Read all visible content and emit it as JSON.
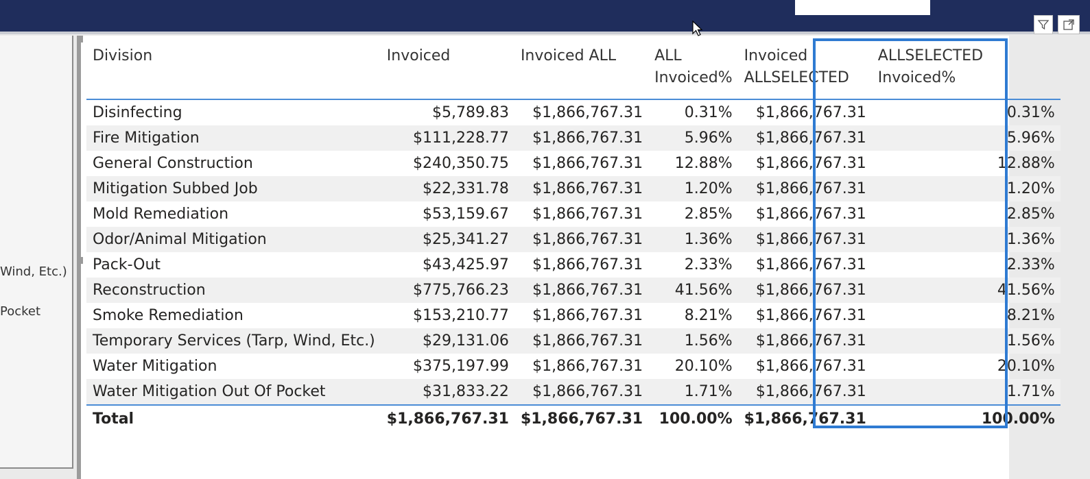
{
  "left_panel": {
    "fragments": [
      {
        "text": "Wind, Etc.)"
      },
      {
        "text": "Pocket"
      }
    ]
  },
  "table": {
    "headers": [
      "Division",
      "Invoiced",
      "Invoiced ALL",
      "ALL Invoiced%",
      "Invoiced ALLSELECTED",
      "ALLSELECTED Invoiced%"
    ],
    "rows": [
      [
        "Disinfecting",
        "$5,789.83",
        "$1,866,767.31",
        "0.31%",
        "$1,866,767.31",
        "0.31%"
      ],
      [
        "Fire Mitigation",
        "$111,228.77",
        "$1,866,767.31",
        "5.96%",
        "$1,866,767.31",
        "5.96%"
      ],
      [
        "General Construction",
        "$240,350.75",
        "$1,866,767.31",
        "12.88%",
        "$1,866,767.31",
        "12.88%"
      ],
      [
        "Mitigation Subbed Job",
        "$22,331.78",
        "$1,866,767.31",
        "1.20%",
        "$1,866,767.31",
        "1.20%"
      ],
      [
        "Mold Remediation",
        "$53,159.67",
        "$1,866,767.31",
        "2.85%",
        "$1,866,767.31",
        "2.85%"
      ],
      [
        "Odor/Animal Mitigation",
        "$25,341.27",
        "$1,866,767.31",
        "1.36%",
        "$1,866,767.31",
        "1.36%"
      ],
      [
        "Pack-Out",
        "$43,425.97",
        "$1,866,767.31",
        "2.33%",
        "$1,866,767.31",
        "2.33%"
      ],
      [
        "Reconstruction",
        "$775,766.23",
        "$1,866,767.31",
        "41.56%",
        "$1,866,767.31",
        "41.56%"
      ],
      [
        "Smoke Remediation",
        "$153,210.77",
        "$1,866,767.31",
        "8.21%",
        "$1,866,767.31",
        "8.21%"
      ],
      [
        "Temporary Services (Tarp, Wind, Etc.)",
        "$29,131.06",
        "$1,866,767.31",
        "1.56%",
        "$1,866,767.31",
        "1.56%"
      ],
      [
        "Water Mitigation",
        "$375,197.99",
        "$1,866,767.31",
        "20.10%",
        "$1,866,767.31",
        "20.10%"
      ],
      [
        "Water Mitigation Out Of Pocket",
        "$31,833.22",
        "$1,866,767.31",
        "1.71%",
        "$1,866,767.31",
        "1.71%"
      ]
    ],
    "total": [
      "Total",
      "$1,866,767.31",
      "$1,866,767.31",
      "100.00%",
      "$1,866,767.31",
      "100.00%"
    ]
  },
  "icons": {
    "filter": "filter-icon",
    "focus": "focus-mode-icon"
  },
  "colors": {
    "topbar": "#1f2d5c",
    "highlight": "#2f7bd2",
    "divider": "#4a8cd6"
  }
}
